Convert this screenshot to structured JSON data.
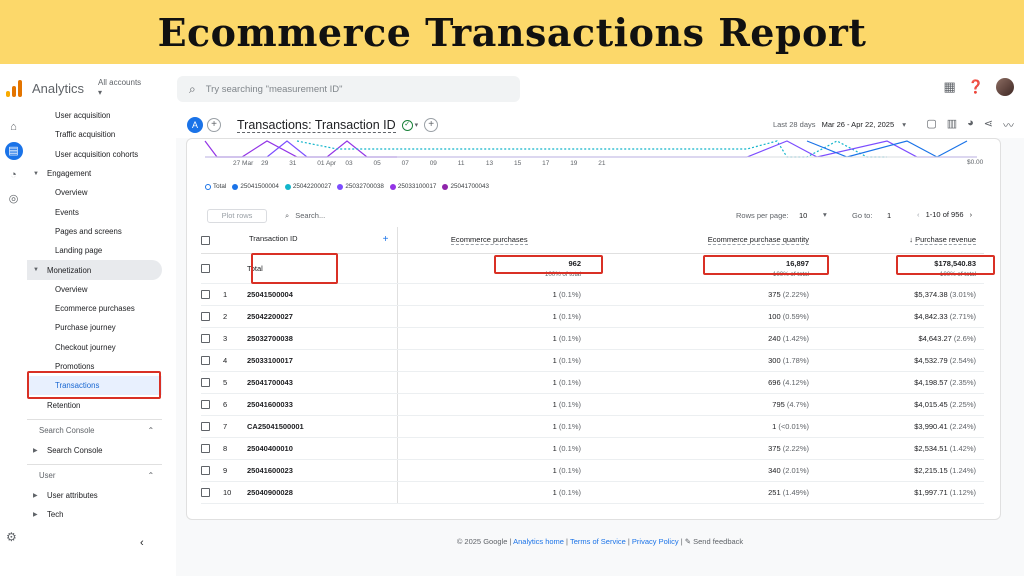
{
  "banner": {
    "title": "Ecommerce Transactions Report"
  },
  "app": {
    "name": "Analytics",
    "accounts_label": "All accounts",
    "search_placeholder": "Try searching \"measurement ID\""
  },
  "nav": {
    "items": [
      {
        "label": "User acquisition",
        "type": "item"
      },
      {
        "label": "Traffic acquisition",
        "type": "item"
      },
      {
        "label": "User acquisition cohorts",
        "type": "item"
      },
      {
        "label": "Engagement",
        "type": "section"
      },
      {
        "label": "Overview",
        "type": "item"
      },
      {
        "label": "Events",
        "type": "item"
      },
      {
        "label": "Pages and screens",
        "type": "item"
      },
      {
        "label": "Landing page",
        "type": "item"
      },
      {
        "label": "Monetization",
        "type": "section"
      },
      {
        "label": "Overview",
        "type": "item"
      },
      {
        "label": "Ecommerce purchases",
        "type": "item"
      },
      {
        "label": "Purchase journey",
        "type": "item"
      },
      {
        "label": "Checkout journey",
        "type": "item"
      },
      {
        "label": "Promotions",
        "type": "item"
      },
      {
        "label": "Transactions",
        "type": "item"
      },
      {
        "label": "Retention",
        "type": "section"
      }
    ],
    "search_console_group": "Search Console",
    "search_console_item": "Search Console",
    "user_group": "User",
    "user_attributes": "User attributes",
    "tech": "Tech"
  },
  "report": {
    "badge": "A",
    "title": "Transactions: Transaction ID",
    "date_prefix": "Last 28 days",
    "date_range": "Mar 26 - Apr 22, 2025"
  },
  "chart_data": {
    "type": "line",
    "x_labels": [
      "27 Mar",
      "29",
      "31",
      "01 Apr",
      "03",
      "05",
      "07",
      "09",
      "11",
      "13",
      "15",
      "17",
      "19",
      "21"
    ],
    "y_tick": "$0.00",
    "legend": [
      {
        "name": "Total",
        "color": "#ffffff"
      },
      {
        "name": "25041500004",
        "color": "#1a73e8"
      },
      {
        "name": "25042200027",
        "color": "#12b5cb"
      },
      {
        "name": "25032700038",
        "color": "#7c4dff"
      },
      {
        "name": "25033100017",
        "color": "#9334e6"
      },
      {
        "name": "25041700043",
        "color": "#8e24aa"
      }
    ]
  },
  "table_controls": {
    "plot_rows": "Plot rows",
    "search": "Search...",
    "rows_per_page_label": "Rows per page:",
    "rows_per_page": "10",
    "goto_label": "Go to:",
    "goto": "1",
    "pager": "1-10 of 956"
  },
  "table": {
    "headers": [
      "Transaction ID",
      "Ecommerce purchases",
      "Ecommerce purchase quantity",
      "Purchase revenue"
    ],
    "total": {
      "label": "Total",
      "purchases": "962",
      "quantity": "16,897",
      "revenue": "$178,540.83",
      "sub": "100% of total"
    },
    "rows": [
      {
        "n": "1",
        "id": "25041500004",
        "p": "1",
        "pp": "(0.1%)",
        "q": "375",
        "qp": "(2.22%)",
        "r": "$5,374.38",
        "rp": "(3.01%)"
      },
      {
        "n": "2",
        "id": "25042200027",
        "p": "1",
        "pp": "(0.1%)",
        "q": "100",
        "qp": "(0.59%)",
        "r": "$4,842.33",
        "rp": "(2.71%)"
      },
      {
        "n": "3",
        "id": "25032700038",
        "p": "1",
        "pp": "(0.1%)",
        "q": "240",
        "qp": "(1.42%)",
        "r": "$4,643.27",
        "rp": "(2.6%)"
      },
      {
        "n": "4",
        "id": "25033100017",
        "p": "1",
        "pp": "(0.1%)",
        "q": "300",
        "qp": "(1.78%)",
        "r": "$4,532.79",
        "rp": "(2.54%)"
      },
      {
        "n": "5",
        "id": "25041700043",
        "p": "1",
        "pp": "(0.1%)",
        "q": "696",
        "qp": "(4.12%)",
        "r": "$4,198.57",
        "rp": "(2.35%)"
      },
      {
        "n": "6",
        "id": "25041600033",
        "p": "1",
        "pp": "(0.1%)",
        "q": "795",
        "qp": "(4.7%)",
        "r": "$4,015.45",
        "rp": "(2.25%)"
      },
      {
        "n": "7",
        "id": "CA25041500001",
        "p": "1",
        "pp": "(0.1%)",
        "q": "1",
        "qp": "(<0.01%)",
        "r": "$3,990.41",
        "rp": "(2.24%)"
      },
      {
        "n": "8",
        "id": "25040400010",
        "p": "1",
        "pp": "(0.1%)",
        "q": "375",
        "qp": "(2.22%)",
        "r": "$2,534.51",
        "rp": "(1.42%)"
      },
      {
        "n": "9",
        "id": "25041600023",
        "p": "1",
        "pp": "(0.1%)",
        "q": "340",
        "qp": "(2.01%)",
        "r": "$2,215.15",
        "rp": "(1.24%)"
      },
      {
        "n": "10",
        "id": "25040900028",
        "p": "1",
        "pp": "(0.1%)",
        "q": "251",
        "qp": "(1.49%)",
        "r": "$1,997.71",
        "rp": "(1.12%)"
      }
    ]
  },
  "footer": {
    "copyright": "© 2025 Google",
    "analytics_home": "Analytics home",
    "terms": "Terms of Service",
    "privacy": "Privacy Policy",
    "feedback": "Send feedback"
  }
}
